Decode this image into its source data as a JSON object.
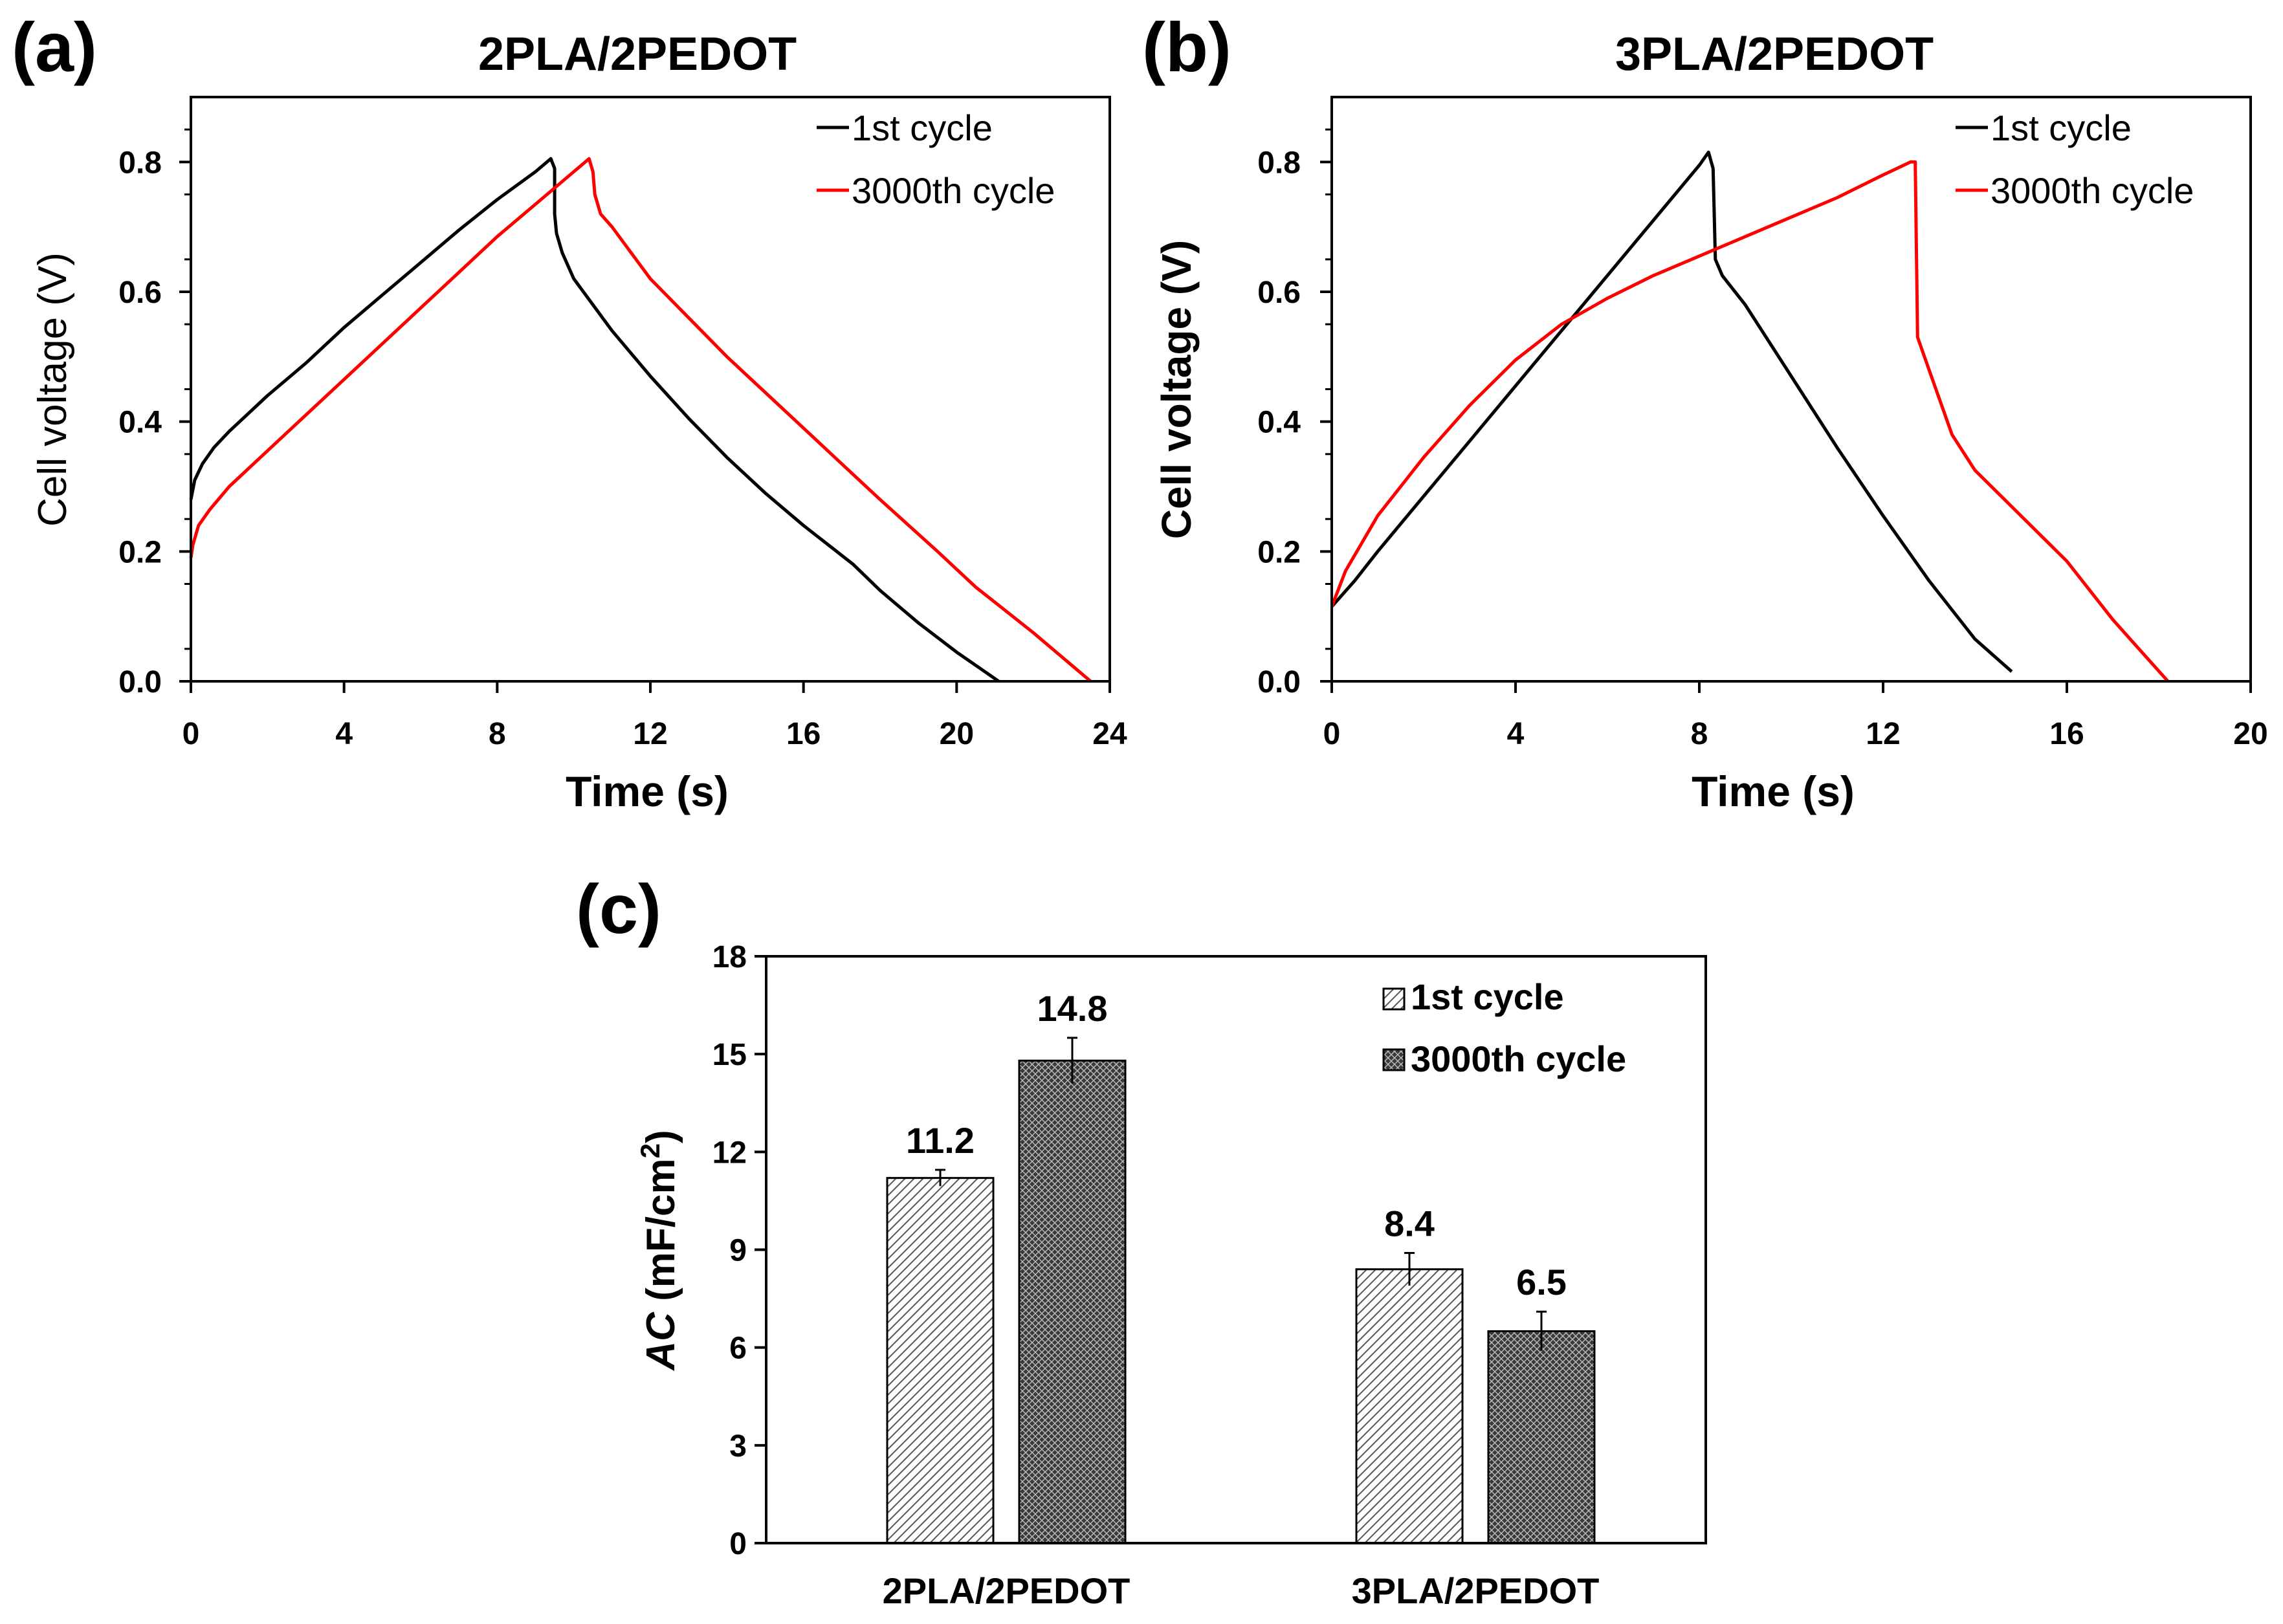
{
  "chart_data": [
    {
      "panel": "(a)",
      "type": "line",
      "title": "2PLA/2PEDOT",
      "xlabel": "Time (s)",
      "ylabel": "Cell voltage (V)",
      "xlim": [
        0,
        24
      ],
      "ylim": [
        0,
        0.9
      ],
      "xticks": [
        0,
        4,
        8,
        12,
        16,
        20,
        24
      ],
      "yticks": [
        0.0,
        0.2,
        0.4,
        0.6,
        0.8
      ],
      "ytick_labels": [
        "0.0",
        "0.2",
        "0.4",
        "0.6",
        "0.8"
      ],
      "legend_position": "top-right",
      "series": [
        {
          "name": "1st cycle",
          "color": "#000000",
          "x": [
            0,
            0.1,
            0.3,
            0.6,
            1,
            2,
            3,
            4,
            5,
            6,
            7,
            8,
            9,
            9.4,
            9.5,
            9.5,
            9.55,
            9.7,
            10,
            11,
            12,
            13,
            14,
            15,
            16,
            17.3,
            18,
            19,
            20,
            21.1
          ],
          "y": [
            0.28,
            0.31,
            0.335,
            0.36,
            0.385,
            0.44,
            0.49,
            0.545,
            0.595,
            0.645,
            0.695,
            0.742,
            0.785,
            0.805,
            0.79,
            0.72,
            0.69,
            0.66,
            0.62,
            0.54,
            0.47,
            0.405,
            0.345,
            0.29,
            0.24,
            0.18,
            0.14,
            0.09,
            0.045,
            0.0
          ]
        },
        {
          "name": "3000th cycle",
          "color": "#ff0000",
          "x": [
            0,
            0.05,
            0.2,
            0.5,
            1,
            2,
            3,
            4,
            5,
            6,
            7,
            8,
            9,
            10,
            10.4,
            10.5,
            10.55,
            10.7,
            11,
            12,
            13,
            14,
            15,
            16,
            17,
            18,
            19.5,
            20.5,
            22,
            23.5
          ],
          "y": [
            0.19,
            0.21,
            0.24,
            0.265,
            0.3,
            0.355,
            0.41,
            0.465,
            0.52,
            0.575,
            0.63,
            0.685,
            0.735,
            0.785,
            0.805,
            0.785,
            0.75,
            0.72,
            0.7,
            0.62,
            0.56,
            0.5,
            0.445,
            0.39,
            0.335,
            0.28,
            0.2,
            0.145,
            0.075,
            0.0
          ]
        }
      ]
    },
    {
      "panel": "(b)",
      "type": "line",
      "title": "3PLA/2PEDOT",
      "xlabel": "Time (s)",
      "ylabel": "Cell voltage (V)",
      "xlim": [
        0,
        20
      ],
      "ylim": [
        0,
        0.9
      ],
      "xticks": [
        0,
        4,
        8,
        12,
        16,
        20
      ],
      "yticks": [
        0.0,
        0.2,
        0.4,
        0.6,
        0.8
      ],
      "ytick_labels": [
        "0.0",
        "0.2",
        "0.4",
        "0.6",
        "0.8"
      ],
      "legend_position": "top-right",
      "series": [
        {
          "name": "1st cycle",
          "color": "#000000",
          "x": [
            0,
            0.5,
            1,
            2,
            3,
            4,
            5,
            6,
            7,
            8,
            8.2,
            8.3,
            8.35,
            8.5,
            9,
            10,
            11,
            12,
            13,
            14,
            14.8
          ],
          "y": [
            0.115,
            0.155,
            0.2,
            0.285,
            0.37,
            0.455,
            0.54,
            0.625,
            0.71,
            0.795,
            0.815,
            0.79,
            0.65,
            0.625,
            0.58,
            0.47,
            0.36,
            0.255,
            0.155,
            0.065,
            0.015
          ]
        },
        {
          "name": "3000th cycle",
          "color": "#ff0000",
          "x": [
            0,
            0.3,
            1,
            2,
            3,
            4,
            5,
            6,
            7,
            8,
            9,
            10,
            11,
            12,
            12.6,
            12.7,
            12.75,
            13,
            13.5,
            14,
            15,
            16,
            17,
            18.2
          ],
          "y": [
            0.115,
            0.17,
            0.255,
            0.345,
            0.425,
            0.495,
            0.55,
            0.59,
            0.625,
            0.655,
            0.685,
            0.715,
            0.745,
            0.78,
            0.8,
            0.8,
            0.53,
            0.48,
            0.38,
            0.325,
            0.255,
            0.185,
            0.095,
            0.0
          ]
        }
      ]
    },
    {
      "panel": "(c)",
      "type": "bar",
      "title": "",
      "xlabel": "",
      "ylabel_italic": "AC",
      "ylabel_units": "(mF/cm",
      "ylabel_sup": "2",
      "ylabel_close": ")",
      "categories": [
        "2PLA/2PEDOT",
        "3PLA/2PEDOT"
      ],
      "ylim": [
        0,
        18
      ],
      "yticks": [
        0,
        3,
        6,
        9,
        12,
        15,
        18
      ],
      "legend_position": "top-right",
      "series": [
        {
          "name": "1st cycle",
          "pattern": "diagonal-hatch",
          "values": [
            11.2,
            8.4
          ],
          "value_labels": [
            "11.2",
            "8.4"
          ],
          "errors": [
            0.25,
            0.5
          ]
        },
        {
          "name": "3000th cycle",
          "pattern": "dark-crosshatch",
          "values": [
            14.8,
            6.5
          ],
          "value_labels": [
            "14.8",
            "6.5"
          ],
          "errors": [
            0.7,
            0.6
          ]
        }
      ]
    }
  ]
}
